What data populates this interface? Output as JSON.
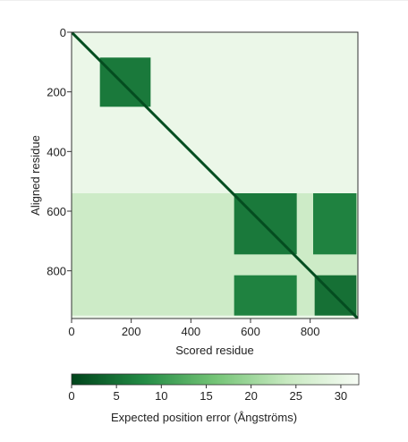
{
  "chart_data": {
    "type": "heatmap",
    "title": "",
    "xlabel": "Scored residue",
    "ylabel": "Aligned residue",
    "xlim": [
      0,
      960
    ],
    "ylim": [
      0,
      960
    ],
    "x_ticks": [
      0,
      200,
      400,
      600,
      800
    ],
    "y_ticks": [
      0,
      200,
      400,
      600,
      800
    ],
    "colorbar": {
      "label": "Expected position error (Ångströms)",
      "range": [
        0,
        32
      ],
      "ticks": [
        0,
        5,
        10,
        15,
        20,
        25,
        30
      ],
      "colors": [
        "#00441b",
        "#238b45",
        "#74c476",
        "#c7e9c0",
        "#f7fcf5"
      ]
    },
    "regions": [
      {
        "name": "diagonal",
        "x_range": [
          0,
          960
        ],
        "y_range": [
          0,
          960
        ],
        "value": 1
      },
      {
        "name": "domain-1",
        "x_range": [
          95,
          265
        ],
        "y_range": [
          85,
          250
        ],
        "value": 6
      },
      {
        "name": "domain-2-core",
        "x_range": [
          545,
          755
        ],
        "y_range": [
          540,
          745
        ],
        "value": 6
      },
      {
        "name": "domain-2-to-3",
        "x_range": [
          545,
          755
        ],
        "y_range": [
          815,
          950
        ],
        "value": 7
      },
      {
        "name": "domain-3-to-2",
        "x_range": [
          810,
          955
        ],
        "y_range": [
          540,
          745
        ],
        "value": 7
      },
      {
        "name": "domain-3-core",
        "x_range": [
          815,
          955
        ],
        "y_range": [
          815,
          950
        ],
        "value": 5
      },
      {
        "name": "N-terminal-linker",
        "x_range": [
          0,
          960
        ],
        "y_range": [
          540,
          950
        ],
        "value": 25
      },
      {
        "name": "background",
        "x_range": [
          0,
          960
        ],
        "y_range": [
          0,
          960
        ],
        "value": 30
      }
    ]
  }
}
